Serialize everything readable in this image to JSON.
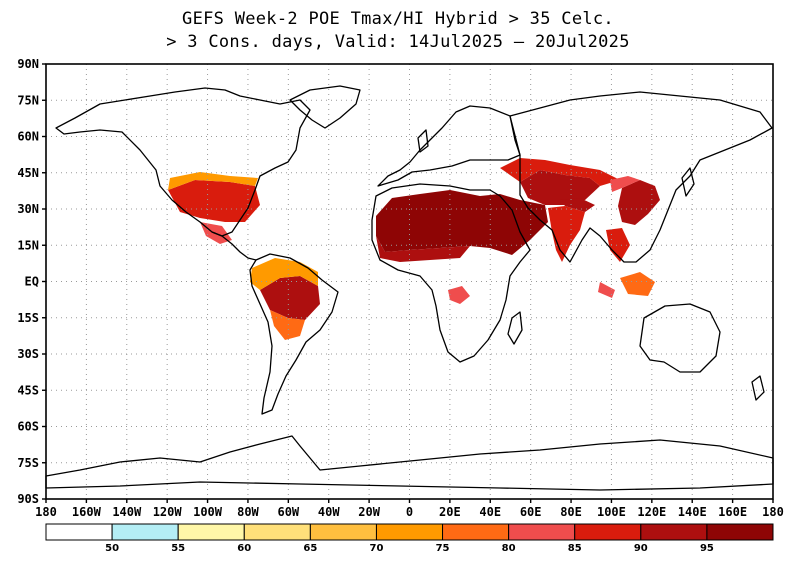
{
  "title": {
    "line1": "GEFS Week-2 POE Tmax/HI Hybrid > 35 Celc.",
    "line2": "> 3 Cons. days, Valid: 14Jul2025 – 20Jul2025"
  },
  "y_ticks": [
    "90N",
    "75N",
    "60N",
    "45N",
    "30N",
    "15N",
    "EQ",
    "15S",
    "30S",
    "45S",
    "60S",
    "75S",
    "90S"
  ],
  "x_ticks": [
    "180",
    "160W",
    "140W",
    "120W",
    "100W",
    "80W",
    "60W",
    "40W",
    "20W",
    "0",
    "20E",
    "40E",
    "60E",
    "80E",
    "100E",
    "120E",
    "140E",
    "160E",
    "180"
  ],
  "legend": {
    "labels": [
      "50",
      "55",
      "60",
      "65",
      "70",
      "75",
      "80",
      "85",
      "90",
      "95"
    ],
    "colors": [
      "#ffffff",
      "#b4eef5",
      "#fff7a8",
      "#ffe07a",
      "#ffbf3f",
      "#ff9a00",
      "#ff6a14",
      "#ef4d4d",
      "#d91c0d",
      "#ad0f0f",
      "#8e0505"
    ]
  },
  "colors": {
    "coast": "#000000",
    "grid": "#9a9a9a"
  }
}
